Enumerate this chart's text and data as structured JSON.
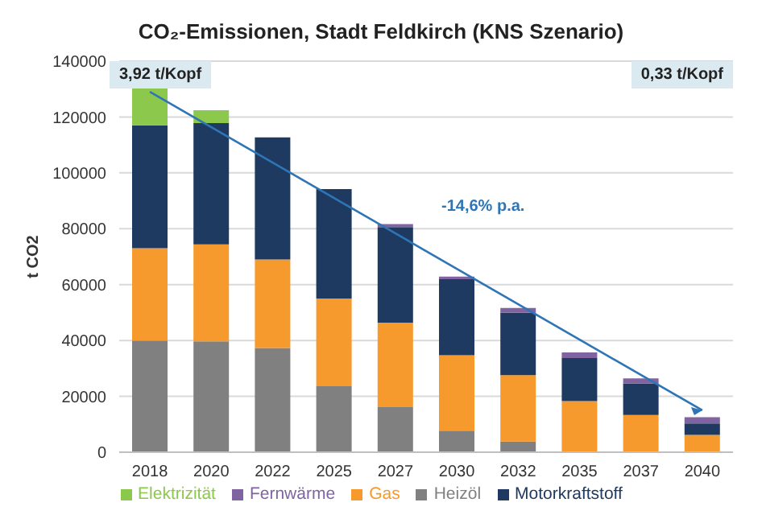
{
  "chart_data": {
    "type": "bar",
    "title": "CO₂-Emissionen, Stadt Feldkirch (KNS Szenario)",
    "ylabel": "t CO2",
    "stacked": true,
    "categories": [
      "2018",
      "2020",
      "2022",
      "2025",
      "2027",
      "2030",
      "2032",
      "2035",
      "2037",
      "2040"
    ],
    "series": [
      {
        "name": "Heizöl",
        "color": "#808080",
        "values": [
          40000,
          39700,
          37300,
          23600,
          16100,
          7700,
          3800,
          0,
          0,
          0
        ]
      },
      {
        "name": "Gas",
        "color": "#f79a2e",
        "values": [
          33000,
          34700,
          31700,
          31400,
          30300,
          27000,
          23800,
          18300,
          13300,
          6200
        ]
      },
      {
        "name": "Motorkraftstoff",
        "color": "#1f3a60",
        "values": [
          44000,
          43400,
          43700,
          39200,
          34200,
          27200,
          22400,
          15400,
          11300,
          4100
        ]
      },
      {
        "name": "Elektrizität",
        "color": "#8cc84b",
        "values": [
          14000,
          4600,
          0,
          0,
          0,
          0,
          0,
          0,
          0,
          0
        ]
      },
      {
        "name": "Fernwärme",
        "color": "#8064a2",
        "values": [
          0,
          0,
          0,
          0,
          1100,
          1000,
          1600,
          2000,
          1800,
          2200
        ]
      },
      {
        "type": "line",
        "color": "#2e75b6",
        "values": [
          129000,
          null,
          null,
          null,
          null,
          null,
          null,
          null,
          null,
          15000
        ]
      }
    ],
    "ylim": [
      0,
      140000
    ],
    "yticks": [
      0,
      20000,
      40000,
      60000,
      80000,
      100000,
      120000,
      140000
    ],
    "grid": "y",
    "legend": "bottom",
    "annotations": [
      "3,92 t/Kopf",
      "0,33 t/Kopf",
      "-14,6% p.a."
    ]
  }
}
